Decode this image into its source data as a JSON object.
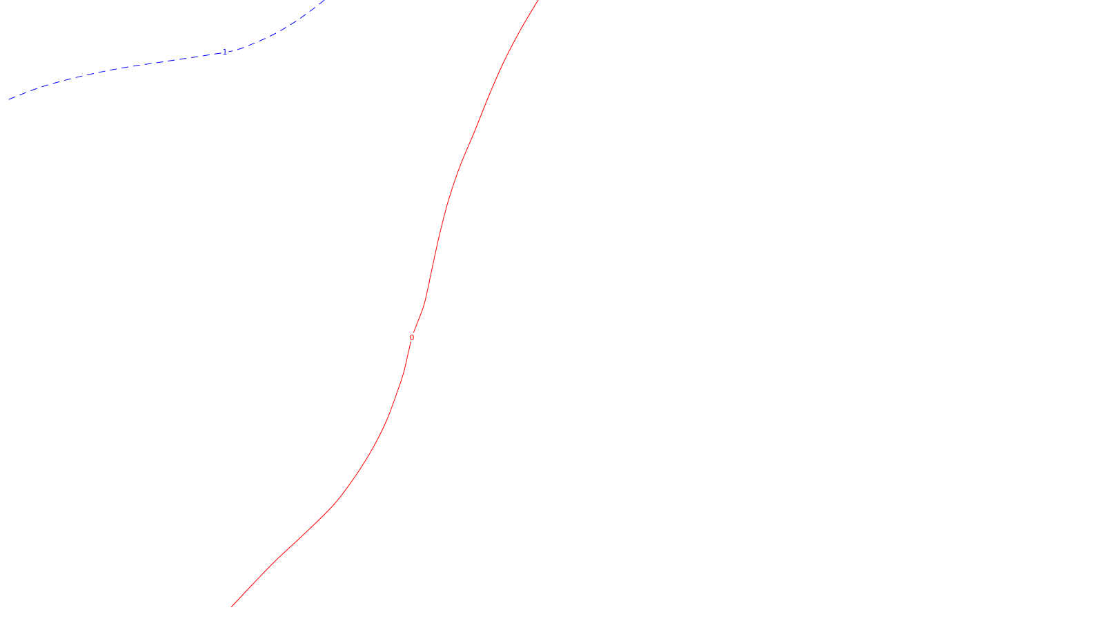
{
  "chart_data": {
    "type": "contour",
    "grid": false,
    "legend": "none",
    "series": [
      {
        "level_label": "0",
        "color": "#ff0000",
        "style": "solid",
        "points": [
          [
            780,
            0
          ],
          [
            755,
            42
          ],
          [
            730,
            90
          ],
          [
            708,
            140
          ],
          [
            688,
            190
          ],
          [
            667,
            240
          ],
          [
            650,
            290
          ],
          [
            637,
            340
          ],
          [
            626,
            390
          ],
          [
            615,
            440
          ],
          [
            604,
            470
          ],
          [
            597,
            489
          ],
          [
            592,
            510
          ],
          [
            585,
            540
          ],
          [
            575,
            570
          ],
          [
            560,
            610
          ],
          [
            540,
            650
          ],
          [
            515,
            690
          ],
          [
            485,
            730
          ],
          [
            445,
            770
          ],
          [
            400,
            812
          ],
          [
            365,
            848
          ],
          [
            335,
            880
          ]
        ],
        "label_at": [
          597,
          489
        ]
      },
      {
        "level_label": "1",
        "color": "#0000ff",
        "style": "dashed",
        "points": [
          [
            470,
            0
          ],
          [
            455,
            12
          ],
          [
            430,
            30
          ],
          [
            400,
            48
          ],
          [
            370,
            62
          ],
          [
            340,
            73
          ],
          [
            300,
            80
          ],
          [
            240,
            89
          ],
          [
            180,
            98
          ],
          [
            120,
            110
          ],
          [
            60,
            126
          ],
          [
            8,
            146
          ]
        ],
        "label_at": [
          326,
          75
        ]
      }
    ]
  }
}
